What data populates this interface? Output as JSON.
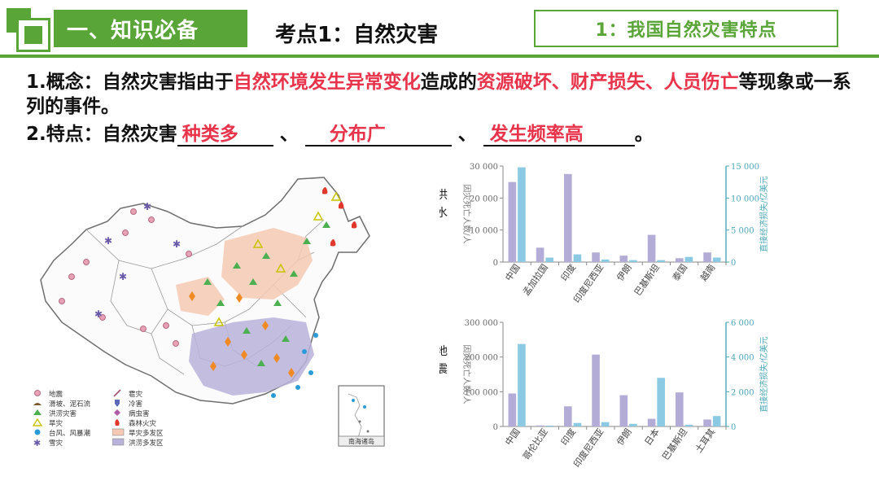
{
  "header": {
    "section_label": "一、知识必备",
    "kaodian_title": "考点1：自然灾害",
    "topic_label": "1：我国自然灾害特点"
  },
  "concept": {
    "prefix": "1.概念：自然灾害指由于",
    "red1": "自然环境发生异常变化",
    "middle": "造成的",
    "red2": "资源破坏、财产损失、人员伤亡",
    "suffix": "等现象或一系列的事件。"
  },
  "features": {
    "prefix": "2.特点：自然灾害",
    "answer1": "种类多",
    "sep1": "、",
    "answer2": "分布广",
    "sep2": "、",
    "answer3": "发生频率高",
    "end": "。"
  },
  "map": {
    "legend": [
      {
        "label": "地震",
        "icon": "earthquake-icon"
      },
      {
        "label": "雹灾",
        "icon": "hail-icon"
      },
      {
        "label": "滑坡、泥石流",
        "icon": "landslide-icon"
      },
      {
        "label": "冷害",
        "icon": "cold-damage-icon"
      },
      {
        "label": "洪涝灾害",
        "icon": "flood-icon"
      },
      {
        "label": "病虫害",
        "icon": "pest-icon"
      },
      {
        "label": "旱灾",
        "icon": "drought-icon"
      },
      {
        "label": "森林火灾",
        "icon": "forest-fire-icon"
      },
      {
        "label": "台风、风暴潮",
        "icon": "typhoon-icon"
      },
      {
        "label": "旱灾多发区",
        "icon": "drought-zone-swatch"
      },
      {
        "label": "雪灾",
        "icon": "snow-icon"
      },
      {
        "label": "洪涝多发区",
        "icon": "flood-zone-swatch"
      }
    ],
    "inset_label": "南海诸岛",
    "colors": {
      "drought_zone": "#f5c9b3",
      "flood_zone": "#b9b3db"
    }
  },
  "chart_data": [
    {
      "type": "bar",
      "side_label": "洪水",
      "categories": [
        "中国",
        "孟加拉国",
        "印度",
        "印度尼西亚",
        "伊朗",
        "巴基斯坦",
        "泰国",
        "越南"
      ],
      "ylabel": "因灾死亡人数/人",
      "y2label": "直接经济损失/亿美元",
      "ylim": [
        0,
        30000
      ],
      "y2lim": [
        0,
        15000
      ],
      "yticks": [
        "0",
        "10 000",
        "20 000",
        "30 000"
      ],
      "y2ticks": [
        "0",
        "5 000",
        "10 000",
        "15 000"
      ],
      "series": [
        {
          "name": "因灾死亡人数",
          "axis": "left",
          "color": "#b3acd6",
          "values": [
            25000,
            4500,
            27500,
            3000,
            2000,
            8500,
            1200,
            3000
          ]
        },
        {
          "name": "直接经济损失",
          "axis": "right",
          "color": "#8cc9e3",
          "values": [
            14800,
            700,
            1200,
            400,
            300,
            300,
            800,
            700
          ]
        }
      ]
    },
    {
      "type": "bar",
      "side_label": "地震",
      "categories": [
        "中国",
        "哥伦比亚",
        "印度",
        "印度尼西亚",
        "伊朗",
        "日本",
        "巴基斯坦",
        "土耳其"
      ],
      "ylabel": "因灾死亡人数/人",
      "y2label": "直接经济损失/亿美元",
      "ylim": [
        0,
        300000
      ],
      "y2lim": [
        0,
        6000
      ],
      "yticks": [
        "0",
        "100 000",
        "200 000",
        "300 000"
      ],
      "y2ticks": [
        "0",
        "2 000",
        "4 000",
        "6 000"
      ],
      "series": [
        {
          "name": "因灾死亡人数",
          "axis": "left",
          "color": "#b3acd6",
          "values": [
            95000,
            3000,
            58000,
            207000,
            90000,
            22000,
            98000,
            20000
          ]
        },
        {
          "name": "直接经济损失",
          "axis": "right",
          "color": "#8cc9e3",
          "values": [
            4750,
            50,
            200,
            250,
            150,
            2800,
            100,
            600
          ]
        }
      ]
    }
  ]
}
